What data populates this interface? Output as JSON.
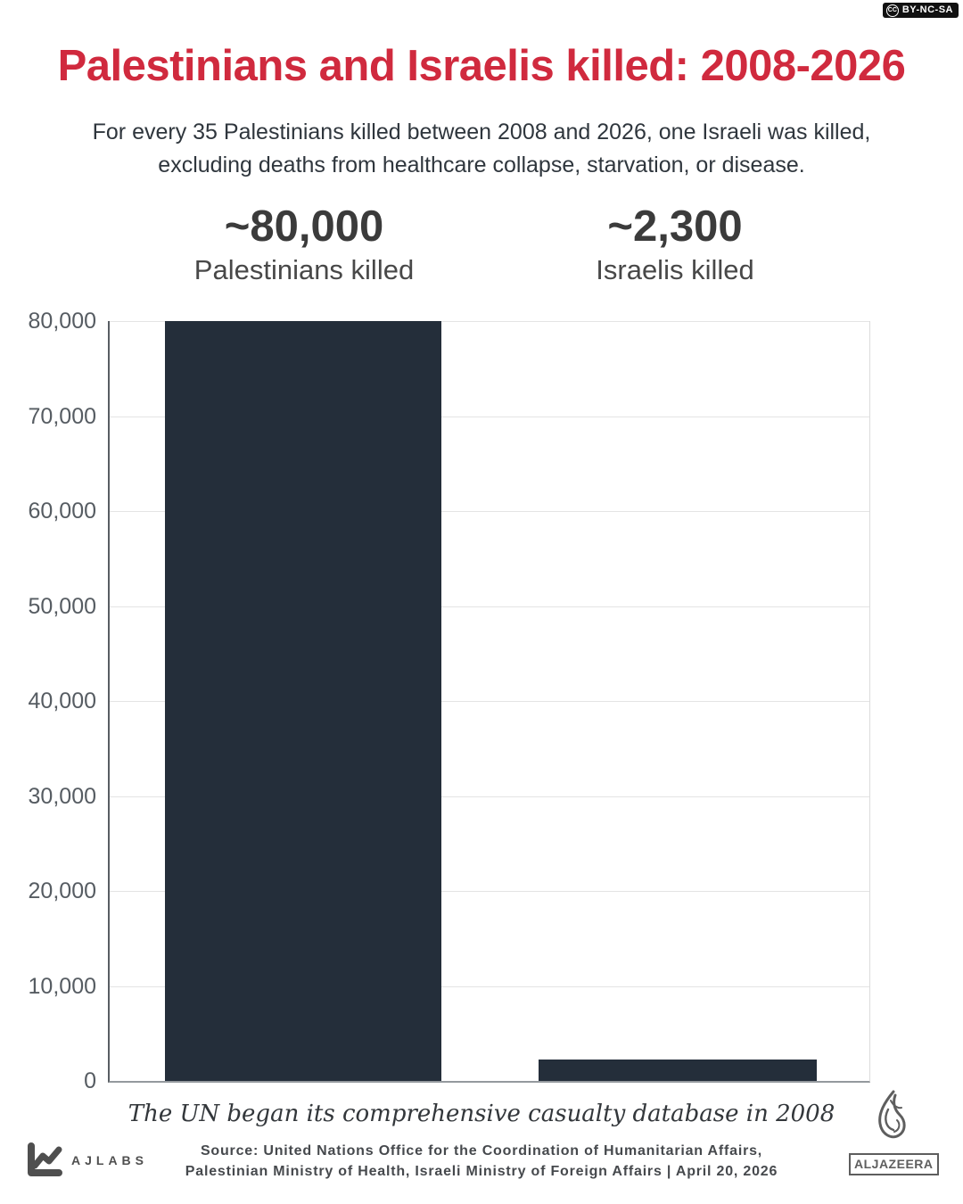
{
  "badge": {
    "cc_icon": "CC",
    "label": "BY-NC-SA"
  },
  "header": {
    "title": "Palestinians and Israelis killed: 2008-2026",
    "subtitle_line1": "For every 35 Palestinians killed between 2008 and 2026, one Israeli was killed,",
    "subtitle_line2": "excluding deaths from healthcare collapse, starvation, or disease."
  },
  "stats": [
    {
      "value": "~80,000",
      "label": "Palestinians killed"
    },
    {
      "value": "~2,300",
      "label": "Israelis killed"
    }
  ],
  "chart_data": {
    "type": "bar",
    "title": "Palestinians and Israelis killed: 2008-2026",
    "categories": [
      "Palestinians killed",
      "Israelis killed"
    ],
    "values": [
      80000,
      2300
    ],
    "xlabel": "",
    "ylabel": "",
    "ylim": [
      0,
      80000
    ],
    "ytick_step": 10000,
    "ytick_labels": [
      "0",
      "10,000",
      "20,000",
      "30,000",
      "40,000",
      "50,000",
      "60,000",
      "70,000",
      "80,000"
    ],
    "grid": true,
    "legend": "none",
    "bar_color": "#242e3a"
  },
  "footnote": "The UN began its comprehensive casualty database in 2008",
  "source": {
    "line1": "Source: United Nations Office for the Coordination of Humanitarian Affairs,",
    "line2": "Palestinian Ministry of Health, Israeli Ministry of Foreign Affairs | April 20, 2026"
  },
  "footer": {
    "ajlabs_label": "AJLABS",
    "aljazeera_label": "ALJAZEERA"
  },
  "colors": {
    "accent_red": "#d02a3e",
    "bar": "#242e3a",
    "subtitle_text": "#2f363d",
    "tick_text": "#565c62"
  }
}
